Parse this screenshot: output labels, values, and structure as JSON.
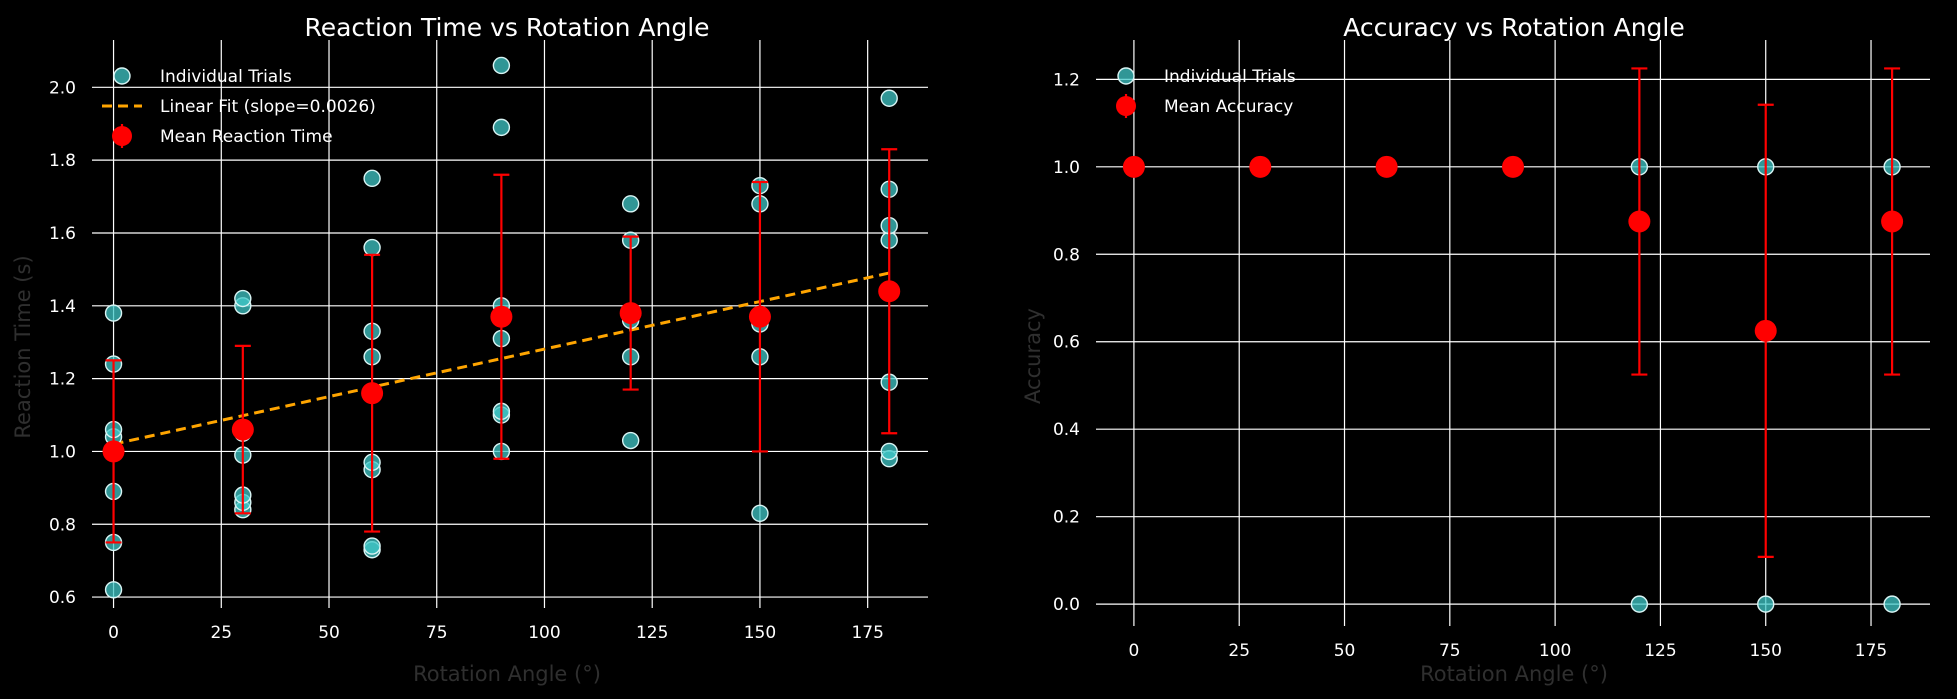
{
  "chart_data": [
    {
      "type": "scatter",
      "title": "Reaction Time vs Rotation Angle",
      "xlabel": "Rotation Angle (°)",
      "ylabel": "Reaction Time (s)",
      "xlim": [
        -5,
        189
      ],
      "ylim": [
        0.57,
        2.13
      ],
      "xticks": [
        0,
        25,
        50,
        75,
        100,
        125,
        150,
        175
      ],
      "yticks": [
        0.6,
        0.8,
        1.0,
        1.2,
        1.4,
        1.6,
        1.8,
        2.0
      ],
      "ytick_format": "%.1f",
      "grid": true,
      "legend_position": "upper-left",
      "legend": [
        {
          "label": "Individual Trials",
          "kind": "trials"
        },
        {
          "label": "Linear Fit (slope=0.0026)",
          "kind": "fit"
        },
        {
          "label": "Mean Reaction Time",
          "kind": "mean"
        }
      ],
      "trials": {
        "color": "#40c8c8",
        "points": [
          [
            0,
            0.62
          ],
          [
            0,
            0.75
          ],
          [
            0,
            0.89
          ],
          [
            0,
            1.04
          ],
          [
            0,
            1.06
          ],
          [
            0,
            1.24
          ],
          [
            0,
            1.38
          ],
          [
            30,
            0.84
          ],
          [
            30,
            0.86
          ],
          [
            30,
            0.88
          ],
          [
            30,
            0.99
          ],
          [
            30,
            1.05
          ],
          [
            30,
            1.4
          ],
          [
            30,
            1.42
          ],
          [
            60,
            0.73
          ],
          [
            60,
            0.74
          ],
          [
            60,
            0.95
          ],
          [
            60,
            0.97
          ],
          [
            60,
            1.26
          ],
          [
            60,
            1.33
          ],
          [
            60,
            1.56
          ],
          [
            60,
            1.75
          ],
          [
            90,
            1.0
          ],
          [
            90,
            1.1
          ],
          [
            90,
            1.11
          ],
          [
            90,
            1.31
          ],
          [
            90,
            1.4
          ],
          [
            90,
            1.89
          ],
          [
            90,
            2.06
          ],
          [
            120,
            1.03
          ],
          [
            120,
            1.26
          ],
          [
            120,
            1.36
          ],
          [
            120,
            1.58
          ],
          [
            120,
            1.68
          ],
          [
            150,
            0.83
          ],
          [
            150,
            1.26
          ],
          [
            150,
            1.35
          ],
          [
            150,
            1.68
          ],
          [
            150,
            1.73
          ],
          [
            180,
            0.98
          ],
          [
            180,
            1.0
          ],
          [
            180,
            1.19
          ],
          [
            180,
            1.58
          ],
          [
            180,
            1.62
          ],
          [
            180,
            1.72
          ],
          [
            180,
            1.97
          ]
        ]
      },
      "fit": {
        "color": "#ffa500",
        "slope": 0.0026,
        "x": [
          0,
          180
        ],
        "y": [
          1.02,
          1.49
        ]
      },
      "means": {
        "color": "#ff0000",
        "x": [
          0,
          30,
          60,
          90,
          120,
          150,
          180
        ],
        "y": [
          1.0,
          1.06,
          1.16,
          1.37,
          1.38,
          1.37,
          1.44
        ],
        "err": [
          0.25,
          0.23,
          0.38,
          0.39,
          0.21,
          0.37,
          0.39
        ]
      }
    },
    {
      "type": "scatter",
      "title": "Accuracy vs Rotation Angle",
      "xlabel": "Rotation Angle (°)",
      "ylabel": "Accuracy",
      "xlim": [
        -9,
        189
      ],
      "ylim": [
        -0.05,
        1.29
      ],
      "xticks": [
        0,
        25,
        50,
        75,
        100,
        125,
        150,
        175
      ],
      "yticks": [
        0.0,
        0.2,
        0.4,
        0.6,
        0.8,
        1.0,
        1.2
      ],
      "ytick_format": "%.1f",
      "grid": true,
      "legend_position": "upper-left",
      "legend": [
        {
          "label": "Individual Trials",
          "kind": "trials"
        },
        {
          "label": "Mean Accuracy",
          "kind": "mean"
        }
      ],
      "trials": {
        "color": "#40c8c8",
        "points": [
          [
            120,
            0
          ],
          [
            120,
            1
          ],
          [
            150,
            0
          ],
          [
            150,
            1
          ],
          [
            180,
            0
          ],
          [
            180,
            1
          ]
        ]
      },
      "means": {
        "color": "#ff0000",
        "x": [
          0,
          30,
          60,
          90,
          120,
          150,
          180
        ],
        "y": [
          1.0,
          1.0,
          1.0,
          1.0,
          0.875,
          0.625,
          0.875
        ],
        "err": [
          0,
          0,
          0,
          0,
          0.35,
          0.517,
          0.35
        ]
      }
    }
  ]
}
